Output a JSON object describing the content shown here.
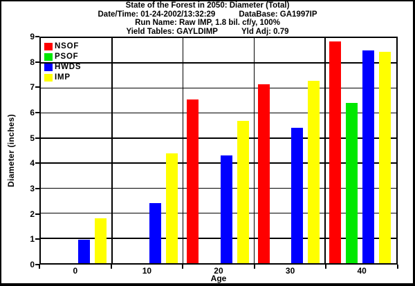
{
  "window": {
    "background": "#FFFFFF",
    "border_color": "#000000",
    "text_color": "#000000"
  },
  "header": {
    "title": "State of the Forest in 2050: Diameter (Total)",
    "datetime_label": "Date/Time: 01-24-2002/13:32:29",
    "database_label": "DataBase: GA1997IP",
    "run_name_label": "Run Name: Raw IMP, 1.8 bil. cf/y, 100%",
    "yield_tables_label": "Yield Tables: GAYLDIMP",
    "yield_adj_label": "Yld Adj: 0.79"
  },
  "chart_data": {
    "type": "bar",
    "title": "State of the Forest in 2050: Diameter (Total)",
    "categories": [
      "0",
      "10",
      "20",
      "30",
      "40"
    ],
    "series": [
      {
        "name": "NSOF",
        "color": "#FF0000",
        "values": [
          0,
          0,
          6.55,
          7.15,
          8.85
        ]
      },
      {
        "name": "PSOF",
        "color": "#00E800",
        "values": [
          0,
          0,
          0,
          0,
          6.4
        ]
      },
      {
        "name": "HWDS",
        "color": "#0000FF",
        "values": [
          0.95,
          2.4,
          4.3,
          5.4,
          8.5
        ]
      },
      {
        "name": "IMP",
        "color": "#FFFF00",
        "values": [
          1.8,
          4.4,
          5.7,
          7.3,
          8.45
        ]
      }
    ],
    "xlabel": "Age",
    "ylabel": "Diameter (inches)",
    "ylim": [
      0,
      9
    ],
    "yticks": [
      0,
      1,
      2,
      3,
      4,
      5,
      6,
      7,
      8,
      9
    ],
    "grid": true,
    "gridline_color": "#000000",
    "legend_position": "top-left"
  }
}
